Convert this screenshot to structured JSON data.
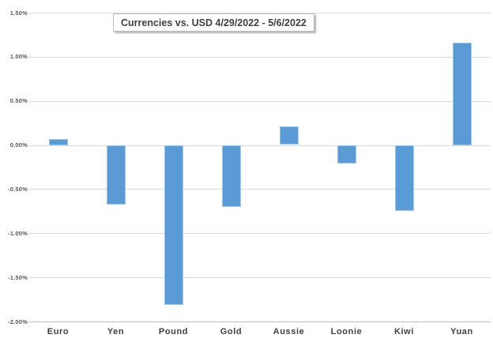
{
  "chart_data": {
    "type": "bar",
    "title": "Currencies vs. USD 4/29/2022 - 5/6/2022",
    "categories": [
      "Euro",
      "Yen",
      "Pound",
      "Gold",
      "Aussie",
      "Loonie",
      "Kiwi",
      "Yuan"
    ],
    "values": [
      0.07,
      -0.67,
      -1.81,
      -0.7,
      0.21,
      -0.21,
      -0.74,
      1.16
    ],
    "unit": "%",
    "ylim": [
      -2.0,
      1.5
    ],
    "ytick_step": 0.5,
    "ytick_labels": [
      "1.50%",
      "1.00%",
      "0.50%",
      "0.00%",
      "-0.50%",
      "-1.00%",
      "-1.50%",
      "-2.00%"
    ],
    "xlabel": "",
    "ylabel": "",
    "grid": true,
    "legend_position": "none",
    "colors": {
      "bar_fill": "#5B9BD5",
      "bar_border": "#A3C6E8",
      "gridline": "#D9D9D9",
      "axis_line": "#BFBFBF",
      "ytick_text": "#595959",
      "category_text": "#404040",
      "title_text": "#404040",
      "background": "#FFFFFF"
    }
  }
}
